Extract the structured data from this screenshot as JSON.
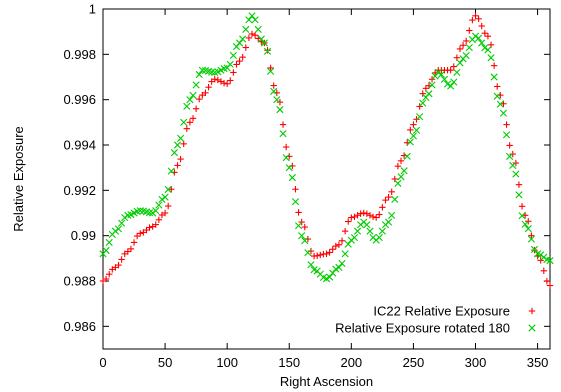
{
  "chart_data": {
    "type": "scatter",
    "xlabel": "Right Ascension",
    "ylabel": "Relative Exposure",
    "xlim": [
      0,
      360
    ],
    "ylim": [
      0.985,
      1.0
    ],
    "xticks": [
      0,
      50,
      100,
      150,
      200,
      250,
      300,
      350
    ],
    "yticks": [
      0.986,
      0.988,
      0.99,
      0.992,
      0.994,
      0.996,
      0.998,
      1
    ],
    "ytick_labels": [
      "0.986",
      "0.988",
      "0.99",
      "0.992",
      "0.994",
      "0.996",
      "0.998",
      "1"
    ],
    "grid": false,
    "legend_position": "bottom-right",
    "x": [
      0,
      10,
      20,
      30,
      40,
      50,
      60,
      70,
      80,
      90,
      100,
      110,
      120,
      130,
      140,
      150,
      160,
      170,
      180,
      190,
      200,
      210,
      220,
      230,
      240,
      250,
      260,
      270,
      280,
      290,
      300,
      310,
      320,
      330,
      340,
      350,
      360
    ],
    "series": [
      {
        "name": "IC22 Relative Exposure",
        "marker": "plus",
        "color": "#ff0000",
        "values": [
          0.988,
          0.9886,
          0.9893,
          0.9901,
          0.9904,
          0.991,
          0.9931,
          0.995,
          0.9962,
          0.9969,
          0.9967,
          0.9977,
          0.9989,
          0.9985,
          0.9963,
          0.9935,
          0.9906,
          0.9891,
          0.9892,
          0.9896,
          0.9908,
          0.991,
          0.9908,
          0.9917,
          0.9933,
          0.9949,
          0.9965,
          0.9973,
          0.9973,
          0.9984,
          0.9997,
          0.9988,
          0.9962,
          0.9936,
          0.9909,
          0.9891,
          0.9878
        ]
      },
      {
        "name": "Relative Exposure rotated 180",
        "marker": "cross",
        "color": "#00cc00",
        "values": [
          0.9892,
          0.9902,
          0.9909,
          0.9911,
          0.991,
          0.9917,
          0.994,
          0.996,
          0.9973,
          0.9972,
          0.9974,
          0.9985,
          0.9997,
          0.9985,
          0.996,
          0.993,
          0.99,
          0.9885,
          0.9881,
          0.9886,
          0.9898,
          0.9906,
          0.9898,
          0.9906,
          0.9926,
          0.9944,
          0.9961,
          0.9972,
          0.9966,
          0.9978,
          0.9988,
          0.9982,
          0.9958,
          0.9931,
          0.9905,
          0.9892,
          0.9889
        ]
      }
    ]
  }
}
